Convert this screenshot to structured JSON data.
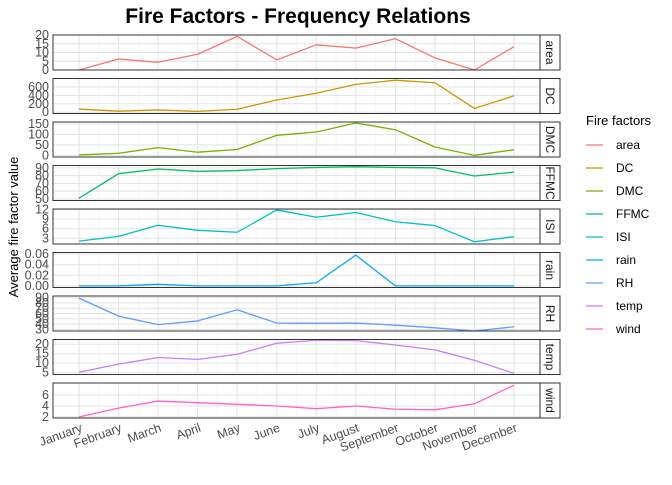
{
  "chart_data": {
    "type": "line",
    "title": "Fire Factors - Frequency Relations",
    "xlabel": "",
    "ylabel": "Average fire factor value",
    "legend_title": "Fire factors",
    "legend_position": "right",
    "grid": true,
    "facet_layout": "rows, free y scales, strip label on right",
    "categories": [
      "January",
      "February",
      "March",
      "April",
      "May",
      "June",
      "July",
      "August",
      "September",
      "October",
      "November",
      "December"
    ],
    "series": [
      {
        "name": "area",
        "color": "#F8766D",
        "ylim": [
          0,
          20
        ],
        "ticks": [
          0,
          5,
          10,
          15,
          20
        ],
        "values": [
          0.0,
          6.3,
          4.4,
          9.0,
          19.2,
          5.8,
          14.4,
          12.5,
          17.9,
          6.9,
          0.0,
          13.3
        ]
      },
      {
        "name": "DC",
        "color": "#CD9600",
        "ylim": [
          -30,
          800
        ],
        "ticks": [
          0,
          200,
          400,
          600
        ],
        "values": [
          75,
          25,
          55,
          20,
          70,
          290,
          450,
          660,
          760,
          700,
          90,
          390
        ]
      },
      {
        "name": "DMC",
        "color": "#7CAE00",
        "ylim": [
          -8,
          160
        ],
        "ticks": [
          0,
          50,
          100,
          150
        ],
        "values": [
          2,
          10,
          37,
          15,
          28,
          96,
          112,
          155,
          123,
          40,
          0,
          27
        ]
      },
      {
        "name": "FFMC",
        "color": "#00BE67",
        "ylim": [
          48,
          93
        ],
        "ticks": [
          50,
          60,
          70,
          80,
          90
        ],
        "values": [
          51,
          82.5,
          88.5,
          85.5,
          86.5,
          89,
          90.5,
          91.5,
          90.5,
          90,
          79.5,
          84.5
        ]
      },
      {
        "name": "ISI",
        "color": "#00BFC4",
        "ylim": [
          1.2,
          12.2
        ],
        "ticks": [
          3,
          6,
          9,
          12
        ],
        "values": [
          2.1,
          3.6,
          7.1,
          5.5,
          4.9,
          11.9,
          9.6,
          11.1,
          8.2,
          7.0,
          1.9,
          3.5
        ]
      },
      {
        "name": "rain",
        "color": "#00A9FF",
        "ylim": [
          -0.003,
          0.063
        ],
        "ticks": [
          0.0,
          0.02,
          0.04,
          0.06
        ],
        "values": [
          0.0,
          0.0,
          0.003,
          0.0,
          0.0,
          0.0,
          0.006,
          0.058,
          0.0,
          0.0,
          0.0,
          0.0
        ]
      },
      {
        "name": "RH",
        "color": "#619CFF",
        "ylim": [
          27,
          93
        ],
        "ticks": [
          30,
          40,
          50,
          60,
          70,
          80,
          90
        ],
        "values": [
          89,
          55,
          39,
          46,
          67,
          42,
          41.5,
          42,
          38,
          33,
          27,
          35
        ]
      },
      {
        "name": "temp",
        "color": "#C77CFF",
        "ylim": [
          4,
          22.5
        ],
        "ticks": [
          5,
          10,
          15,
          20
        ],
        "values": [
          5.2,
          9.5,
          13.0,
          12.0,
          14.7,
          20.5,
          22.1,
          21.9,
          19.6,
          17.0,
          11.5,
          4.6
        ]
      },
      {
        "name": "wind",
        "color": "#FF61CC",
        "ylim": [
          1.8,
          8.2
        ],
        "ticks": [
          2,
          4,
          6
        ],
        "values": [
          2.0,
          3.6,
          4.9,
          4.6,
          4.3,
          4.0,
          3.5,
          4.0,
          3.4,
          3.3,
          4.4,
          7.8
        ]
      }
    ]
  }
}
